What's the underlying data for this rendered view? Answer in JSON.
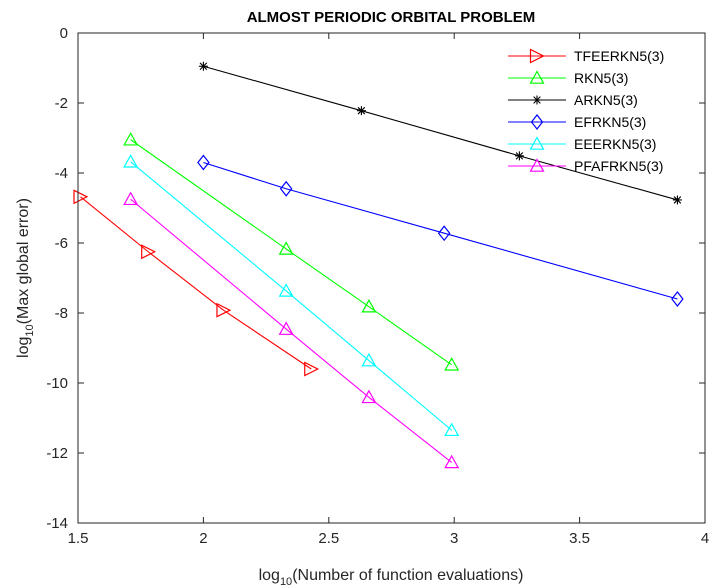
{
  "chart_data": {
    "type": "line",
    "title": "ALMOST PERIODIC ORBITAL PROBLEM",
    "xlabel": {
      "prefix": "log",
      "sub": "10",
      "rest": "(Number of function evaluations)"
    },
    "ylabel": {
      "prefix": "log",
      "sub": "10",
      "rest": "(Max global error)"
    },
    "xlim": [
      1.5,
      4
    ],
    "ylim": [
      -14,
      0
    ],
    "xticks": [
      1.5,
      2,
      2.5,
      3,
      3.5,
      4
    ],
    "yticks": [
      -14,
      -12,
      -10,
      -8,
      -6,
      -4,
      -2,
      0
    ],
    "xtick_labels": [
      "1.5",
      "2",
      "2.5",
      "3",
      "3.5",
      "4"
    ],
    "ytick_labels": [
      "-14",
      "-12",
      "-10",
      "-8",
      "-6",
      "-4",
      "-2",
      "0"
    ],
    "grid": false,
    "legend_position": "top-right",
    "series": [
      {
        "name": "TFEERKN5(3)",
        "color": "#ff0000",
        "marker": "triangle-right",
        "x": [
          1.51,
          1.78,
          2.08,
          2.43
        ],
        "y": [
          -4.68,
          -6.25,
          -7.92,
          -9.6
        ]
      },
      {
        "name": "RKN5(3)",
        "color": "#00ff00",
        "marker": "triangle-up",
        "x": [
          1.71,
          2.33,
          2.66,
          2.99
        ],
        "y": [
          -3.05,
          -6.17,
          -7.82,
          -9.48
        ]
      },
      {
        "name": "ARKN5(3)",
        "color": "#000000",
        "marker": "asterisk",
        "x": [
          2.0,
          2.63,
          3.26,
          3.89
        ],
        "y": [
          -0.95,
          -2.22,
          -3.51,
          -4.77
        ]
      },
      {
        "name": "EFRKN5(3)",
        "color": "#0000ff",
        "marker": "diamond",
        "x": [
          2.0,
          2.33,
          2.96,
          3.89
        ],
        "y": [
          -3.7,
          -4.45,
          -5.72,
          -7.6
        ]
      },
      {
        "name": "EEERKN5(3)",
        "color": "#00ffff",
        "marker": "triangle-up",
        "x": [
          1.71,
          2.33,
          2.66,
          2.99
        ],
        "y": [
          -3.68,
          -7.37,
          -9.36,
          -11.35
        ]
      },
      {
        "name": "PFAFRKN5(3)",
        "color": "#ff00ff",
        "marker": "triangle-up",
        "x": [
          1.71,
          2.33,
          2.66,
          2.99
        ],
        "y": [
          -4.75,
          -8.46,
          -10.41,
          -12.27
        ]
      }
    ]
  }
}
